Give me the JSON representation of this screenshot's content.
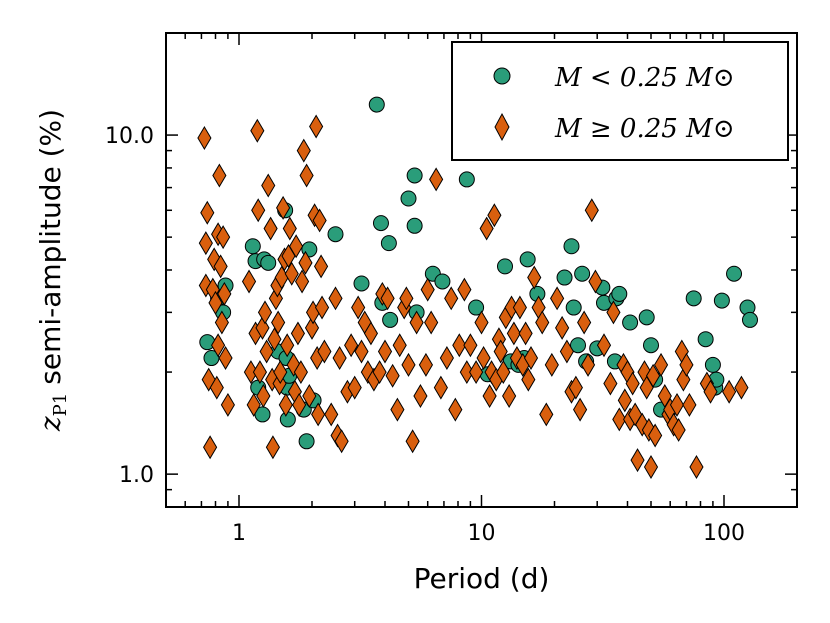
{
  "chart_data": {
    "type": "scatter",
    "title": "",
    "xlabel": "Period (d)",
    "ylabel_symbol": "z",
    "ylabel_subscript": "P1",
    "ylabel_text": "semi-amplitude (%)",
    "xscale": "log",
    "yscale": "log",
    "xlim": [
      0.5,
      200
    ],
    "ylim": [
      0.8,
      20
    ],
    "xticks": [
      {
        "value": 1,
        "label": "1"
      },
      {
        "value": 10,
        "label": "10"
      },
      {
        "value": 100,
        "label": "100"
      }
    ],
    "yticks": [
      {
        "value": 1,
        "label": "1.0"
      },
      {
        "value": 10,
        "label": "10.0"
      }
    ],
    "legend_position": "top-right",
    "series": [
      {
        "name": "M < 0.25 M⊙",
        "marker": "circle",
        "color": "#2a9d7a",
        "points": [
          [
            0.74,
            2.45
          ],
          [
            0.77,
            2.2
          ],
          [
            0.82,
            3.3
          ],
          [
            0.86,
            3.0
          ],
          [
            0.88,
            3.6
          ],
          [
            1.14,
            4.7
          ],
          [
            1.17,
            4.25
          ],
          [
            1.2,
            1.8
          ],
          [
            1.25,
            1.5
          ],
          [
            1.27,
            4.3
          ],
          [
            1.32,
            4.2
          ],
          [
            1.45,
            2.3
          ],
          [
            1.57,
            2.2
          ],
          [
            1.55,
            6.0
          ],
          [
            1.58,
            1.8
          ],
          [
            1.59,
            1.45
          ],
          [
            1.61,
            1.95
          ],
          [
            1.85,
            1.55
          ],
          [
            1.9,
            1.25
          ],
          [
            1.95,
            4.6
          ],
          [
            2.03,
            1.65
          ],
          [
            2.5,
            5.1
          ],
          [
            3.2,
            3.65
          ],
          [
            3.7,
            12.3
          ],
          [
            3.85,
            5.5
          ],
          [
            3.9,
            3.2
          ],
          [
            4.15,
            4.8
          ],
          [
            4.2,
            2.85
          ],
          [
            5.0,
            6.5
          ],
          [
            5.3,
            7.6
          ],
          [
            5.3,
            5.4
          ],
          [
            5.4,
            3.0
          ],
          [
            6.3,
            3.9
          ],
          [
            6.9,
            3.7
          ],
          [
            8.7,
            7.4
          ],
          [
            9.5,
            3.1
          ],
          [
            10.6,
            1.97
          ],
          [
            12.5,
            4.1
          ],
          [
            13.2,
            2.15
          ],
          [
            14.2,
            2.1
          ],
          [
            15.0,
            2.2
          ],
          [
            15.5,
            4.3
          ],
          [
            17.0,
            3.4
          ],
          [
            22.0,
            3.8
          ],
          [
            23.5,
            4.7
          ],
          [
            24.0,
            3.1
          ],
          [
            25.0,
            2.4
          ],
          [
            26.0,
            3.9
          ],
          [
            27.0,
            2.15
          ],
          [
            30.0,
            2.35
          ],
          [
            31.5,
            3.55
          ],
          [
            32.0,
            3.2
          ],
          [
            35.5,
            2.15
          ],
          [
            36.0,
            3.3
          ],
          [
            37.0,
            3.4
          ],
          [
            41.0,
            2.8
          ],
          [
            48.0,
            2.9
          ],
          [
            50.0,
            2.4
          ],
          [
            52.0,
            1.9
          ],
          [
            55.0,
            1.55
          ],
          [
            75.0,
            3.3
          ],
          [
            84.0,
            2.5
          ],
          [
            90.0,
            2.1
          ],
          [
            92.0,
            1.8
          ],
          [
            93.0,
            1.9
          ],
          [
            98.0,
            3.25
          ],
          [
            110.0,
            3.9
          ],
          [
            125.0,
            3.1
          ],
          [
            128.0,
            2.85
          ]
        ]
      },
      {
        "name": "M ≥ 0.25 M⊙",
        "marker": "diamond",
        "color": "#d95f0e",
        "points": [
          [
            0.72,
            9.8
          ],
          [
            0.73,
            4.8
          ],
          [
            0.73,
            3.6
          ],
          [
            0.74,
            5.9
          ],
          [
            0.75,
            1.9
          ],
          [
            0.76,
            1.2
          ],
          [
            0.78,
            3.5
          ],
          [
            0.79,
            4.3
          ],
          [
            0.8,
            3.2
          ],
          [
            0.81,
            1.8
          ],
          [
            0.82,
            5.1
          ],
          [
            0.82,
            2.4
          ],
          [
            0.83,
            7.6
          ],
          [
            0.84,
            4.1
          ],
          [
            0.85,
            2.8
          ],
          [
            0.86,
            5.0
          ],
          [
            0.87,
            3.4
          ],
          [
            0.88,
            2.2
          ],
          [
            0.9,
            1.6
          ],
          [
            1.1,
            3.7
          ],
          [
            1.12,
            2.0
          ],
          [
            1.15,
            1.6
          ],
          [
            1.17,
            2.6
          ],
          [
            1.19,
            10.3
          ],
          [
            1.2,
            6.0
          ],
          [
            1.22,
            2.0
          ],
          [
            1.25,
            2.7
          ],
          [
            1.26,
            1.7
          ],
          [
            1.28,
            3.0
          ],
          [
            1.3,
            2.3
          ],
          [
            1.32,
            7.1
          ],
          [
            1.35,
            5.3
          ],
          [
            1.37,
            1.9
          ],
          [
            1.38,
            1.2
          ],
          [
            1.4,
            2.5
          ],
          [
            1.42,
            3.3
          ],
          [
            1.44,
            3.6
          ],
          [
            1.45,
            2.8
          ],
          [
            1.47,
            1.85
          ],
          [
            1.48,
            2.0
          ],
          [
            1.5,
            3.8
          ],
          [
            1.52,
            6.1
          ],
          [
            1.54,
            4.3
          ],
          [
            1.56,
            1.6
          ],
          [
            1.58,
            2.4
          ],
          [
            1.6,
            4.4
          ],
          [
            1.62,
            5.3
          ],
          [
            1.65,
            3.9
          ],
          [
            1.68,
            2.1
          ],
          [
            1.7,
            1.75
          ],
          [
            1.72,
            4.7
          ],
          [
            1.75,
            2.6
          ],
          [
            1.77,
            1.6
          ],
          [
            1.8,
            2.0
          ],
          [
            1.82,
            3.7
          ],
          [
            1.85,
            9.0
          ],
          [
            1.88,
            4.2
          ],
          [
            1.9,
            7.6
          ],
          [
            1.95,
            1.7
          ],
          [
            2.0,
            2.7
          ],
          [
            2.02,
            3.0
          ],
          [
            2.05,
            5.8
          ],
          [
            2.08,
            10.6
          ],
          [
            2.1,
            2.2
          ],
          [
            2.12,
            1.5
          ],
          [
            2.15,
            5.6
          ],
          [
            2.18,
            4.1
          ],
          [
            2.2,
            3.1
          ],
          [
            2.25,
            2.3
          ],
          [
            2.4,
            1.5
          ],
          [
            2.5,
            3.3
          ],
          [
            2.55,
            1.3
          ],
          [
            2.6,
            2.2
          ],
          [
            2.65,
            1.25
          ],
          [
            2.8,
            1.75
          ],
          [
            2.9,
            2.4
          ],
          [
            3.0,
            1.8
          ],
          [
            3.1,
            3.1
          ],
          [
            3.2,
            2.3
          ],
          [
            3.3,
            2.8
          ],
          [
            3.4,
            2.0
          ],
          [
            3.5,
            2.6
          ],
          [
            3.6,
            1.9
          ],
          [
            3.8,
            2.0
          ],
          [
            3.9,
            3.4
          ],
          [
            4.0,
            2.3
          ],
          [
            4.1,
            3.3
          ],
          [
            4.3,
            1.95
          ],
          [
            4.5,
            1.55
          ],
          [
            4.6,
            2.4
          ],
          [
            4.8,
            3.1
          ],
          [
            4.9,
            3.3
          ],
          [
            5.0,
            2.1
          ],
          [
            5.2,
            1.25
          ],
          [
            5.4,
            2.8
          ],
          [
            5.6,
            1.7
          ],
          [
            5.9,
            2.1
          ],
          [
            6.0,
            3.5
          ],
          [
            6.2,
            2.8
          ],
          [
            6.5,
            7.4
          ],
          [
            6.8,
            1.8
          ],
          [
            7.2,
            2.2
          ],
          [
            7.5,
            3.3
          ],
          [
            7.8,
            1.55
          ],
          [
            8.1,
            2.4
          ],
          [
            8.5,
            3.5
          ],
          [
            8.7,
            2.0
          ],
          [
            9.0,
            2.4
          ],
          [
            9.5,
            2.0
          ],
          [
            10.0,
            2.8
          ],
          [
            10.2,
            2.2
          ],
          [
            10.5,
            5.3
          ],
          [
            10.8,
            1.7
          ],
          [
            11.0,
            2.0
          ],
          [
            11.3,
            5.8
          ],
          [
            11.5,
            1.9
          ],
          [
            11.8,
            2.5
          ],
          [
            12.0,
            2.3
          ],
          [
            12.3,
            2.0
          ],
          [
            12.6,
            2.9
          ],
          [
            13.0,
            1.7
          ],
          [
            13.3,
            3.1
          ],
          [
            13.6,
            2.6
          ],
          [
            14.0,
            2.2
          ],
          [
            14.4,
            3.1
          ],
          [
            14.8,
            2.1
          ],
          [
            15.2,
            2.6
          ],
          [
            15.6,
            1.9
          ],
          [
            16.0,
            2.2
          ],
          [
            16.5,
            3.8
          ],
          [
            17.2,
            3.1
          ],
          [
            17.8,
            2.8
          ],
          [
            18.5,
            1.5
          ],
          [
            19.5,
            2.1
          ],
          [
            20.5,
            3.3
          ],
          [
            21.5,
            2.7
          ],
          [
            22.5,
            2.3
          ],
          [
            23.5,
            1.75
          ],
          [
            24.5,
            1.8
          ],
          [
            25.5,
            1.55
          ],
          [
            26.5,
            2.8
          ],
          [
            27.5,
            2.1
          ],
          [
            28.5,
            6.0
          ],
          [
            29.5,
            3.7
          ],
          [
            32.0,
            2.4
          ],
          [
            34.0,
            1.85
          ],
          [
            35.0,
            3.0
          ],
          [
            37.0,
            1.45
          ],
          [
            38.5,
            2.1
          ],
          [
            39.0,
            1.65
          ],
          [
            40.0,
            2.0
          ],
          [
            41.0,
            1.45
          ],
          [
            42.0,
            1.85
          ],
          [
            43.0,
            1.5
          ],
          [
            44.0,
            1.1
          ],
          [
            46.0,
            1.4
          ],
          [
            47.0,
            2.0
          ],
          [
            48.0,
            1.8
          ],
          [
            49.0,
            1.35
          ],
          [
            50.0,
            1.05
          ],
          [
            51.0,
            1.95
          ],
          [
            52.0,
            1.3
          ],
          [
            55.0,
            2.1
          ],
          [
            57.0,
            1.7
          ],
          [
            59.0,
            1.5
          ],
          [
            60.0,
            1.55
          ],
          [
            62.0,
            1.4
          ],
          [
            64.0,
            1.6
          ],
          [
            65.0,
            1.35
          ],
          [
            67.0,
            2.3
          ],
          [
            68.0,
            1.9
          ],
          [
            70.0,
            2.1
          ],
          [
            72.0,
            1.6
          ],
          [
            77.0,
            1.05
          ],
          [
            85.0,
            1.85
          ],
          [
            88.0,
            1.75
          ],
          [
            105.0,
            1.75
          ],
          [
            118.0,
            1.8
          ]
        ]
      }
    ]
  }
}
